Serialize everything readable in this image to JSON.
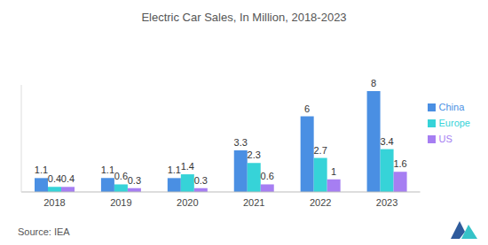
{
  "chart_data": {
    "type": "bar",
    "title": "Electric Car Sales, In Million, 2018-2023",
    "source": "Source: IEA",
    "categories": [
      "2018",
      "2019",
      "2020",
      "2021",
      "2022",
      "2023"
    ],
    "series": [
      {
        "name": "China",
        "color": "#4a8fe3",
        "values": [
          1.1,
          1.1,
          1.1,
          3.3,
          6,
          8
        ]
      },
      {
        "name": "Europe",
        "color": "#36d3d8",
        "values": [
          0.4,
          0.6,
          1.4,
          2.3,
          2.7,
          3.4
        ]
      },
      {
        "name": "US",
        "color": "#a67ef2",
        "values": [
          0.4,
          0.3,
          0.3,
          0.6,
          1,
          1.6
        ]
      }
    ],
    "ylim": [
      0,
      8.5
    ],
    "grid": false,
    "legend": "right",
    "data_labels": true,
    "tick_labels": "x"
  }
}
